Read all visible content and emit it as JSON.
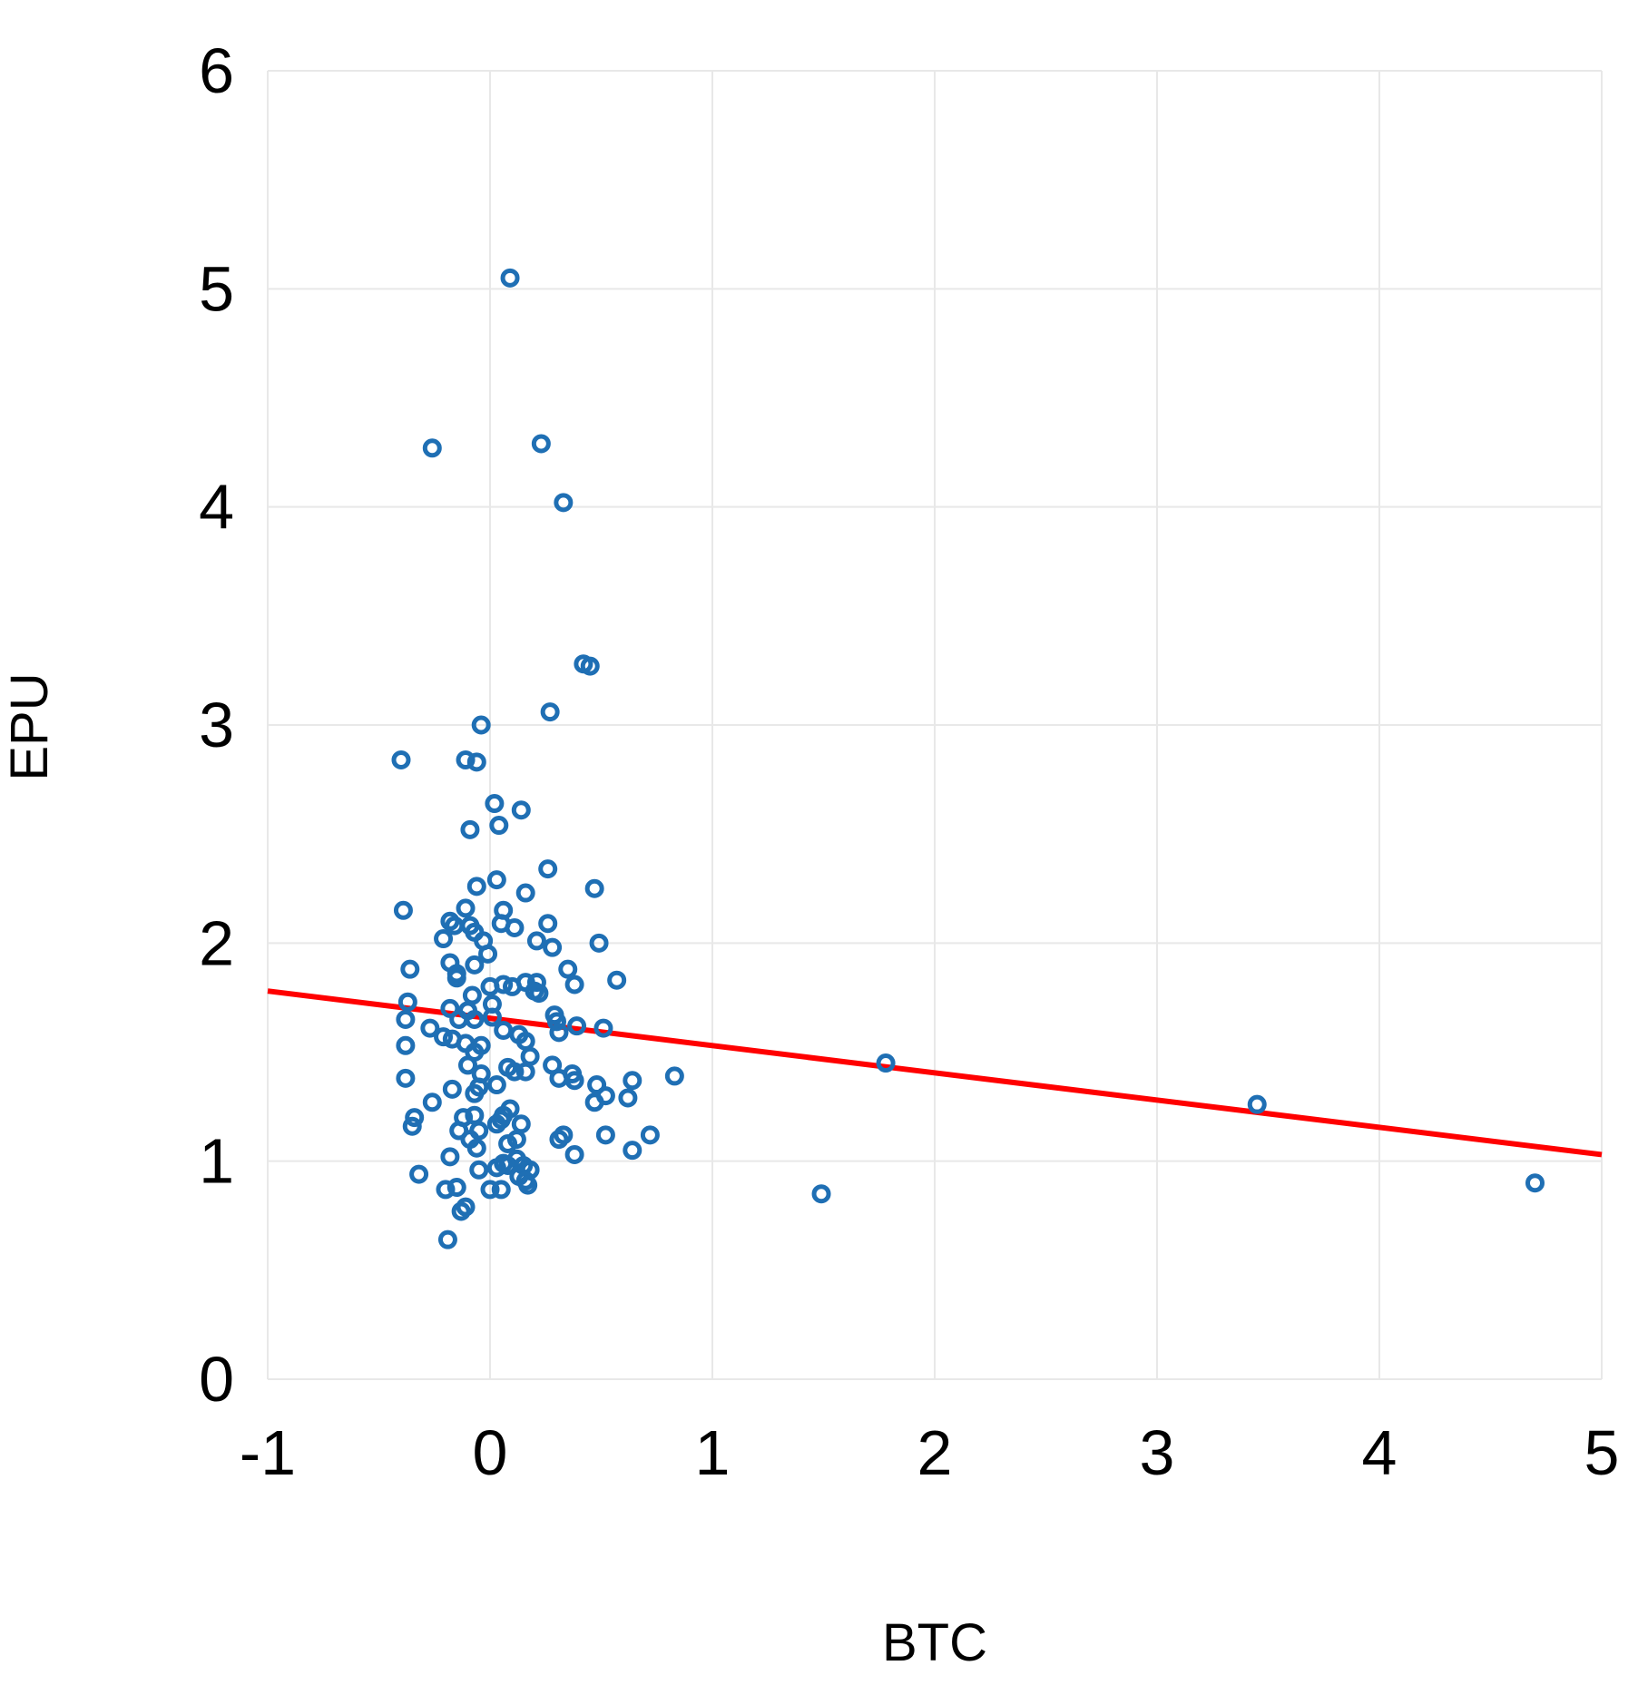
{
  "chart_data": {
    "type": "scatter",
    "xlabel": "BTC",
    "ylabel": "EPU",
    "xlim": [
      -1,
      5
    ],
    "ylim": [
      0,
      6
    ],
    "xticks": [
      "-1",
      "0",
      "1",
      "2",
      "3",
      "4",
      "5"
    ],
    "yticks": [
      "0",
      "1",
      "2",
      "3",
      "4",
      "5",
      "6"
    ],
    "grid": true,
    "legend": "none",
    "colors": {
      "points": "#1f6fb4",
      "trendline": "#ff0000",
      "grid": "#e8e8e8"
    },
    "trendline": {
      "x": [
        -1,
        5
      ],
      "y": [
        1.78,
        1.03
      ]
    },
    "points": [
      [
        0.09,
        5.05
      ],
      [
        -0.26,
        4.27
      ],
      [
        0.23,
        4.29
      ],
      [
        0.33,
        4.02
      ],
      [
        0.42,
        3.28
      ],
      [
        0.45,
        3.27
      ],
      [
        0.27,
        3.06
      ],
      [
        -0.04,
        3.0
      ],
      [
        -0.4,
        2.84
      ],
      [
        -0.11,
        2.84
      ],
      [
        -0.06,
        2.83
      ],
      [
        0.02,
        2.64
      ],
      [
        0.14,
        2.61
      ],
      [
        0.04,
        2.54
      ],
      [
        -0.09,
        2.52
      ],
      [
        0.26,
        2.34
      ],
      [
        0.03,
        2.29
      ],
      [
        -0.06,
        2.26
      ],
      [
        0.47,
        2.25
      ],
      [
        0.16,
        2.23
      ],
      [
        -0.39,
        2.15
      ],
      [
        -0.11,
        2.16
      ],
      [
        0.06,
        2.15
      ],
      [
        -0.18,
        2.1
      ],
      [
        -0.16,
        2.08
      ],
      [
        -0.09,
        2.08
      ],
      [
        0.05,
        2.09
      ],
      [
        0.11,
        2.07
      ],
      [
        0.26,
        2.09
      ],
      [
        -0.07,
        2.05
      ],
      [
        -0.21,
        2.02
      ],
      [
        -0.03,
        2.01
      ],
      [
        0.21,
        2.01
      ],
      [
        0.49,
        2.0
      ],
      [
        0.28,
        1.98
      ],
      [
        -0.01,
        1.95
      ],
      [
        -0.18,
        1.91
      ],
      [
        -0.07,
        1.9
      ],
      [
        -0.36,
        1.88
      ],
      [
        -0.15,
        1.86
      ],
      [
        0.35,
        1.88
      ],
      [
        -0.15,
        1.84
      ],
      [
        0.57,
        1.83
      ],
      [
        0.16,
        1.82
      ],
      [
        0.21,
        1.82
      ],
      [
        0.0,
        1.8
      ],
      [
        0.06,
        1.81
      ],
      [
        0.1,
        1.8
      ],
      [
        0.38,
        1.81
      ],
      [
        0.2,
        1.78
      ],
      [
        0.22,
        1.77
      ],
      [
        -0.08,
        1.76
      ],
      [
        -0.37,
        1.73
      ],
      [
        0.01,
        1.72
      ],
      [
        -0.18,
        1.7
      ],
      [
        -0.1,
        1.69
      ],
      [
        0.29,
        1.67
      ],
      [
        -0.38,
        1.65
      ],
      [
        -0.14,
        1.65
      ],
      [
        -0.07,
        1.65
      ],
      [
        0.01,
        1.66
      ],
      [
        0.3,
        1.64
      ],
      [
        -0.27,
        1.61
      ],
      [
        0.39,
        1.62
      ],
      [
        0.51,
        1.61
      ],
      [
        0.06,
        1.6
      ],
      [
        -0.21,
        1.57
      ],
      [
        -0.17,
        1.56
      ],
      [
        0.13,
        1.58
      ],
      [
        0.31,
        1.59
      ],
      [
        -0.11,
        1.54
      ],
      [
        -0.04,
        1.53
      ],
      [
        0.16,
        1.55
      ],
      [
        -0.38,
        1.53
      ],
      [
        -0.07,
        1.5
      ],
      [
        0.18,
        1.48
      ],
      [
        1.78,
        1.45
      ],
      [
        -0.1,
        1.44
      ],
      [
        0.08,
        1.43
      ],
      [
        0.28,
        1.44
      ],
      [
        0.11,
        1.41
      ],
      [
        0.16,
        1.41
      ],
      [
        -0.04,
        1.4
      ],
      [
        0.37,
        1.4
      ],
      [
        0.83,
        1.39
      ],
      [
        -0.38,
        1.38
      ],
      [
        0.31,
        1.38
      ],
      [
        0.38,
        1.37
      ],
      [
        0.64,
        1.37
      ],
      [
        0.03,
        1.35
      ],
      [
        0.48,
        1.35
      ],
      [
        -0.05,
        1.34
      ],
      [
        -0.17,
        1.33
      ],
      [
        -0.07,
        1.31
      ],
      [
        0.52,
        1.3
      ],
      [
        0.62,
        1.29
      ],
      [
        -0.26,
        1.27
      ],
      [
        0.47,
        1.27
      ],
      [
        3.45,
        1.26
      ],
      [
        0.09,
        1.24
      ],
      [
        0.06,
        1.21
      ],
      [
        -0.34,
        1.2
      ],
      [
        -0.12,
        1.2
      ],
      [
        -0.07,
        1.21
      ],
      [
        0.05,
        1.19
      ],
      [
        0.03,
        1.17
      ],
      [
        0.14,
        1.17
      ],
      [
        -0.35,
        1.16
      ],
      [
        -0.14,
        1.14
      ],
      [
        -0.05,
        1.14
      ],
      [
        0.33,
        1.12
      ],
      [
        0.52,
        1.12
      ],
      [
        0.72,
        1.12
      ],
      [
        -0.09,
        1.1
      ],
      [
        0.12,
        1.1
      ],
      [
        0.31,
        1.1
      ],
      [
        0.08,
        1.08
      ],
      [
        -0.06,
        1.06
      ],
      [
        0.64,
        1.05
      ],
      [
        -0.18,
        1.02
      ],
      [
        0.38,
        1.03
      ],
      [
        0.12,
        1.01
      ],
      [
        0.06,
        0.99
      ],
      [
        0.08,
        0.98
      ],
      [
        0.15,
        0.98
      ],
      [
        0.03,
        0.97
      ],
      [
        -0.05,
        0.96
      ],
      [
        0.18,
        0.96
      ],
      [
        -0.32,
        0.94
      ],
      [
        0.13,
        0.93
      ],
      [
        0.16,
        0.91
      ],
      [
        0.17,
        0.89
      ],
      [
        4.7,
        0.9
      ],
      [
        -0.15,
        0.88
      ],
      [
        -0.2,
        0.87
      ],
      [
        0.0,
        0.87
      ],
      [
        0.05,
        0.87
      ],
      [
        1.49,
        0.85
      ],
      [
        -0.11,
        0.79
      ],
      [
        -0.13,
        0.77
      ],
      [
        -0.19,
        0.64
      ]
    ]
  }
}
